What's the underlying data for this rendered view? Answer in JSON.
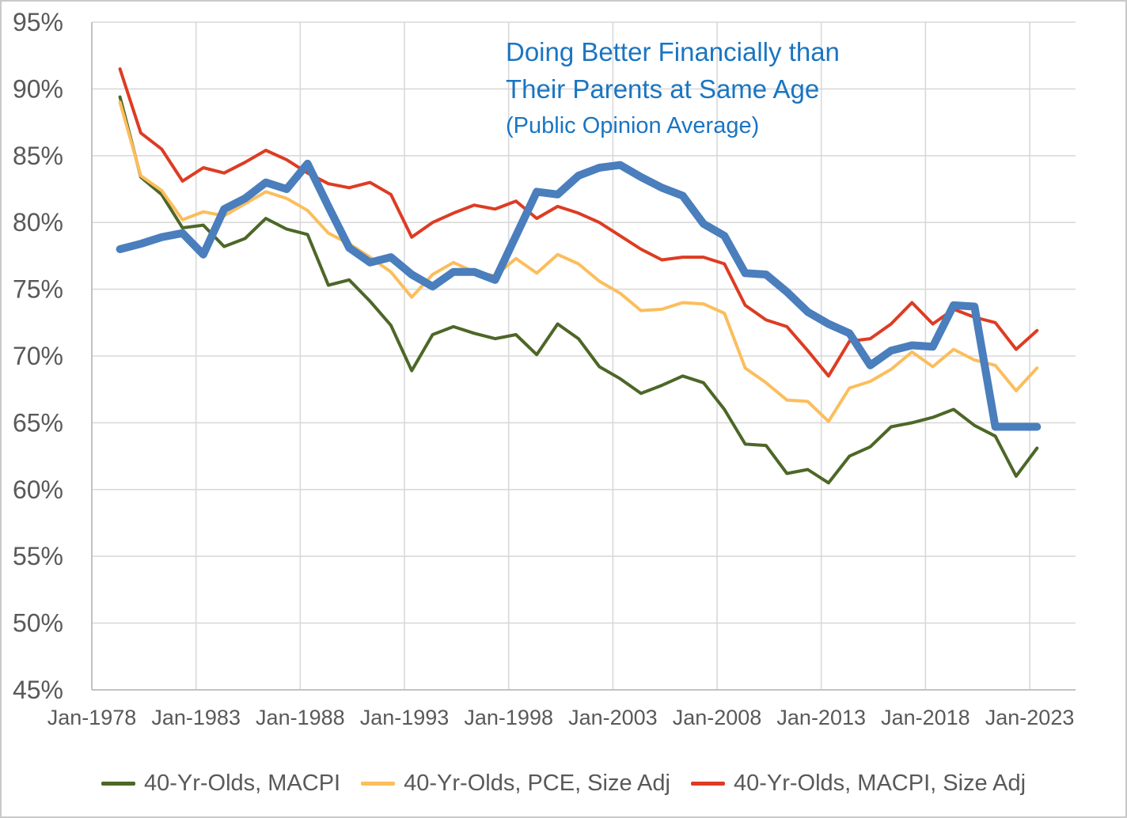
{
  "title": {
    "line1": "Doing Better Financially than",
    "line2": "Their Parents at Same Age",
    "line3": "(Public Opinion Average)",
    "color": "#1a75c2"
  },
  "axes": {
    "y_tick_labels": [
      "95%",
      "90%",
      "85%",
      "80%",
      "75%",
      "70%",
      "65%",
      "60%",
      "55%",
      "50%",
      "45%"
    ],
    "x_tick_labels": [
      "Jan-1978",
      "Jan-1983",
      "Jan-1988",
      "Jan-1993",
      "Jan-1998",
      "Jan-2003",
      "Jan-2008",
      "Jan-2013",
      "Jan-2018",
      "Jan-2023"
    ],
    "text_color": "#595959",
    "gridline_color": "#d9d9d9",
    "border_color": "#c2c2c2"
  },
  "chart_data": {
    "type": "line",
    "title": "Doing Better Financially than Their Parents at Same Age (Public Opinion Average)",
    "xlabel": "",
    "ylabel": "",
    "ylim": [
      45,
      95
    ],
    "xlim_years": [
      1978,
      2025.2
    ],
    "grid": true,
    "legend_position": "bottom",
    "y_tick_values": [
      95,
      90,
      85,
      80,
      75,
      70,
      65,
      60,
      55,
      50,
      45
    ],
    "x_tick_years": [
      1978,
      1983,
      1988,
      1993,
      1998,
      2003,
      2008,
      2013,
      2018,
      2023
    ],
    "years": [
      1979,
      1980,
      1981,
      1982,
      1983,
      1984,
      1985,
      1986,
      1987,
      1988,
      1989,
      1990,
      1991,
      1992,
      1993,
      1994,
      1995,
      1996,
      1997,
      1998,
      1999,
      2000,
      2001,
      2002,
      2003,
      2004,
      2005,
      2006,
      2007,
      2008,
      2009,
      2010,
      2011,
      2012,
      2013,
      2014,
      2015,
      2016,
      2017,
      2018,
      2019,
      2020,
      2021,
      2022,
      2023
    ],
    "plot_month_offset": 0.35,
    "series": [
      {
        "name": "40-Yr-Olds, MACPI",
        "color": "#4d6727",
        "width": 4,
        "in_legend": true,
        "values": [
          89.4,
          83.4,
          82.1,
          79.6,
          79.8,
          78.2,
          78.8,
          80.3,
          79.5,
          79.1,
          75.3,
          75.7,
          74.1,
          72.3,
          68.9,
          71.6,
          72.2,
          71.7,
          71.3,
          71.6,
          70.1,
          72.4,
          71.3,
          69.2,
          68.3,
          67.2,
          67.8,
          68.5,
          68.0,
          66.0,
          63.4,
          63.3,
          61.2,
          61.5,
          60.5,
          62.5,
          63.2,
          64.7,
          65.0,
          65.4,
          66.0,
          64.8,
          64.0,
          61.0,
          63.1
        ]
      },
      {
        "name": "40-Yr-Olds, PCE, Size Adj",
        "color": "#fbbe5c",
        "width": 4,
        "in_legend": true,
        "values": [
          89.0,
          83.5,
          82.4,
          80.2,
          80.8,
          80.5,
          81.4,
          82.3,
          81.8,
          80.9,
          79.2,
          78.4,
          77.4,
          76.3,
          74.4,
          76.1,
          77.0,
          76.3,
          76.0,
          77.3,
          76.2,
          77.6,
          76.9,
          75.6,
          74.7,
          73.4,
          73.5,
          74.0,
          73.9,
          73.2,
          69.1,
          68.0,
          66.7,
          66.6,
          65.1,
          67.6,
          68.1,
          69.0,
          70.3,
          69.2,
          70.5,
          69.7,
          69.3,
          67.4,
          69.1
        ]
      },
      {
        "name": "40-Yr-Olds, MACPI, Size Adj",
        "color": "#dd3c23",
        "width": 4,
        "in_legend": true,
        "values": [
          91.5,
          86.7,
          85.5,
          83.1,
          84.1,
          83.7,
          84.5,
          85.4,
          84.7,
          83.7,
          82.9,
          82.6,
          83.0,
          82.1,
          78.9,
          80.0,
          80.7,
          81.3,
          81.0,
          81.6,
          80.3,
          81.2,
          80.7,
          80.0,
          79.0,
          78.0,
          77.2,
          77.4,
          77.4,
          76.9,
          73.8,
          72.7,
          72.2,
          70.4,
          68.5,
          71.1,
          71.3,
          72.4,
          74.0,
          72.4,
          73.5,
          72.9,
          72.5,
          70.5,
          71.9
        ]
      },
      {
        "name": "Public Opinion Average",
        "color": "#4a7ebd",
        "width": 10,
        "in_legend": false,
        "values": [
          78.0,
          78.4,
          78.9,
          79.2,
          77.6,
          81.0,
          81.8,
          83.0,
          82.5,
          84.4,
          81.2,
          78.1,
          77.0,
          77.4,
          76.1,
          75.2,
          76.3,
          76.3,
          75.7,
          79.0,
          82.3,
          82.1,
          83.5,
          84.1,
          84.3,
          83.4,
          82.6,
          82.0,
          79.9,
          79.0,
          76.2,
          76.1,
          74.8,
          73.3,
          72.4,
          71.7,
          69.3,
          70.4,
          70.8,
          70.7,
          73.8,
          73.7,
          64.7,
          64.7,
          64.7
        ]
      }
    ]
  }
}
